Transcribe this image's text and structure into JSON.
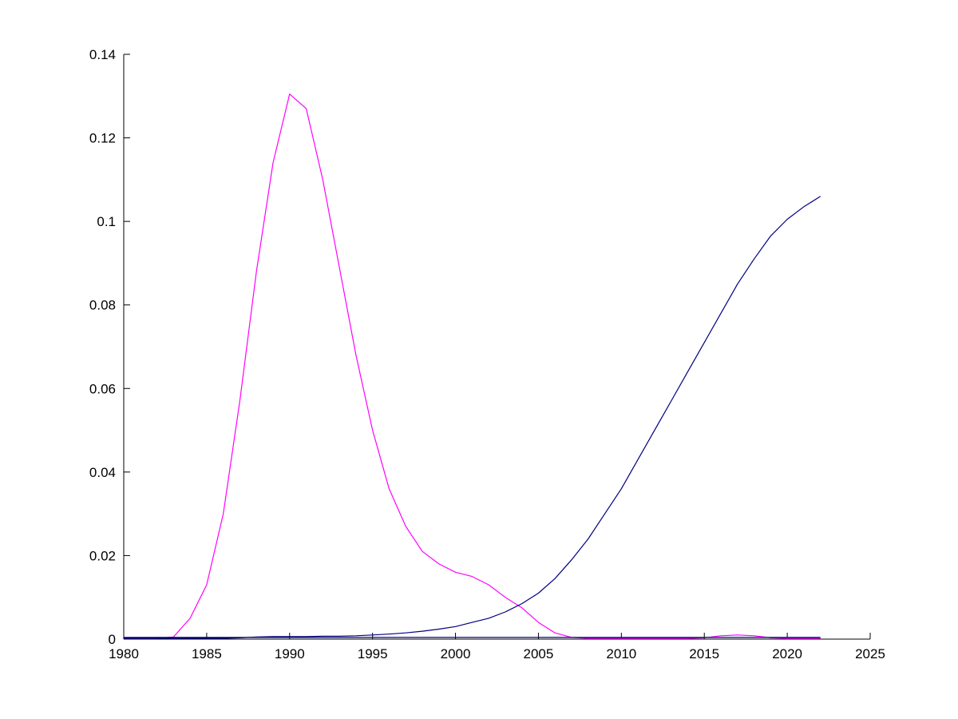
{
  "figure": {
    "background": "#ffffff"
  },
  "chart_data": {
    "type": "line",
    "title": "",
    "xlabel": "",
    "ylabel": "",
    "xlim": [
      1980,
      2025
    ],
    "ylim": [
      0,
      0.14
    ],
    "grid": false,
    "legend": null,
    "axis_color": "#000000",
    "x_ticks": [
      {
        "value": 1980,
        "label": "1980"
      },
      {
        "value": 1985,
        "label": "1985"
      },
      {
        "value": 1990,
        "label": "1990"
      },
      {
        "value": 1995,
        "label": "1995"
      },
      {
        "value": 2000,
        "label": "2000"
      },
      {
        "value": 2005,
        "label": "2005"
      },
      {
        "value": 2010,
        "label": "2010"
      },
      {
        "value": 2015,
        "label": "2015"
      },
      {
        "value": 2020,
        "label": "2020"
      },
      {
        "value": 2025,
        "label": "2025"
      }
    ],
    "y_ticks": [
      {
        "value": 0,
        "label": "0"
      },
      {
        "value": 0.02,
        "label": "0.02"
      },
      {
        "value": 0.04,
        "label": "0.04"
      },
      {
        "value": 0.06,
        "label": "0.06"
      },
      {
        "value": 0.08,
        "label": "0.08"
      },
      {
        "value": 0.1,
        "label": "0.1"
      },
      {
        "value": 0.12,
        "label": "0.12"
      },
      {
        "value": 0.14,
        "label": "0.14"
      }
    ],
    "series": [
      {
        "name": "series-magenta-peak-1990",
        "color": "#ff00ff",
        "x": [
          1980,
          1981,
          1982,
          1983,
          1984,
          1985,
          1986,
          1987,
          1988,
          1989,
          1990,
          1991,
          1992,
          1993,
          1994,
          1995,
          1996,
          1997,
          1998,
          1999,
          2000,
          2001,
          2002,
          2003,
          2004,
          2005,
          2006,
          2007,
          2008,
          2009,
          2010,
          2011,
          2012,
          2013,
          2014,
          2015,
          2016,
          2017,
          2018,
          2019,
          2020,
          2021,
          2022
        ],
        "values": [
          0.0002,
          0.0002,
          0.0002,
          0.0005,
          0.005,
          0.013,
          0.03,
          0.057,
          0.088,
          0.114,
          0.1305,
          0.127,
          0.11,
          0.089,
          0.068,
          0.05,
          0.036,
          0.027,
          0.021,
          0.018,
          0.016,
          0.015,
          0.013,
          0.01,
          0.0075,
          0.004,
          0.0015,
          0.0004,
          0.0002,
          0.0002,
          0.0002,
          0.0002,
          0.0002,
          0.0002,
          0.0002,
          0.0003,
          0.0008,
          0.001,
          0.0008,
          0.0003,
          0.0002,
          0.0002,
          0.0002
        ]
      },
      {
        "name": "series-blue-rising",
        "color": "#000080",
        "x": [
          1980,
          1981,
          1982,
          1983,
          1984,
          1985,
          1986,
          1987,
          1988,
          1989,
          1990,
          1991,
          1992,
          1993,
          1994,
          1995,
          1996,
          1997,
          1998,
          1999,
          2000,
          2001,
          2002,
          2003,
          2004,
          2005,
          2006,
          2007,
          2008,
          2009,
          2010,
          2011,
          2012,
          2013,
          2014,
          2015,
          2016,
          2017,
          2018,
          2019,
          2020,
          2021,
          2022
        ],
        "values": [
          0.0002,
          0.0002,
          0.0002,
          0.0002,
          0.0002,
          0.0002,
          0.0002,
          0.0003,
          0.0005,
          0.0006,
          0.0006,
          0.0006,
          0.0007,
          0.0007,
          0.0008,
          0.001,
          0.0012,
          0.0015,
          0.0019,
          0.0024,
          0.003,
          0.004,
          0.005,
          0.0065,
          0.0085,
          0.011,
          0.0145,
          0.019,
          0.024,
          0.03,
          0.036,
          0.043,
          0.05,
          0.057,
          0.064,
          0.071,
          0.078,
          0.085,
          0.091,
          0.0965,
          0.1005,
          0.1035,
          0.106
        ]
      },
      {
        "name": "series-blue-flat-near-zero",
        "color": "#000080",
        "x": [
          1980,
          1990,
          2000,
          2010,
          2015,
          2022
        ],
        "values": [
          0.0004,
          0.0004,
          0.0004,
          0.0004,
          0.0004,
          0.0004
        ]
      }
    ]
  }
}
